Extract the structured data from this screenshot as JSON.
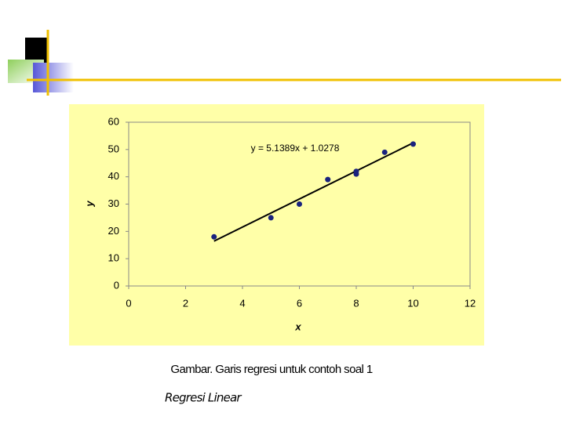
{
  "chart_data": {
    "type": "scatter",
    "x": [
      3,
      5,
      6,
      7,
      8,
      8,
      9,
      10
    ],
    "values": [
      18,
      25,
      30,
      39,
      41,
      42,
      49,
      52
    ],
    "color": "#1a237e",
    "trendline": {
      "label": "y = 5.1389x + 1.0278",
      "slope": 5.1389,
      "intercept": 1.0278,
      "color": "#000000"
    },
    "x_label": "x",
    "y_label": "y",
    "xlim": [
      0,
      12
    ],
    "xticks": [
      0,
      2,
      4,
      6,
      8,
      10,
      12
    ],
    "ylim": [
      0,
      60
    ],
    "yticks": [
      0,
      10,
      20,
      30,
      40,
      50,
      60
    ],
    "grid": false
  },
  "caption": "Gambar. Garis regresi untuk contoh soal 1",
  "slide_title": "Regresi Linear"
}
